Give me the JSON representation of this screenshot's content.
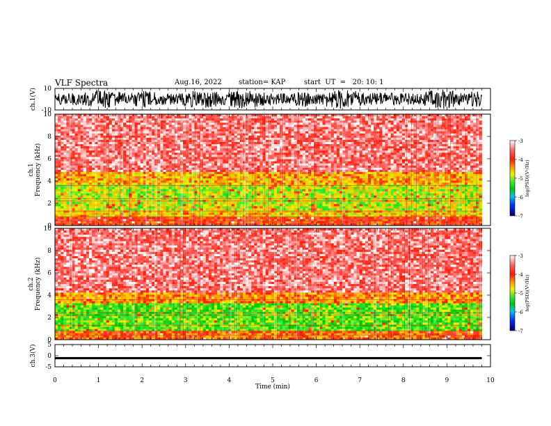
{
  "header": {
    "title": "VLF Spectra",
    "date": "Aug.16, 2022",
    "station": "station= KAP",
    "start": "start  UT  =   20: 10: 1"
  },
  "chart_data": [
    {
      "type": "line",
      "id": "ch1-waveform",
      "ylabel": "ch.1(V)",
      "ylim": [
        -10,
        10
      ],
      "yticks": [
        "10",
        "-10"
      ],
      "xlim": [
        0,
        10
      ],
      "data_extent_min": 9.8,
      "description_series": "high-amplitude noise waveform oscillating near full scale"
    },
    {
      "type": "heatmap",
      "id": "ch1-spectrogram",
      "ylabel": "ch.1",
      "ylabel2": "Frequency  (kHz)",
      "ylim": [
        0,
        10
      ],
      "yticks": [
        "0",
        "2",
        "4",
        "6",
        "8",
        "10"
      ],
      "bands": [
        {
          "from_khz": 0.0,
          "to_khz": 0.8,
          "level": -4.0
        },
        {
          "from_khz": 0.8,
          "to_khz": 1.3,
          "level": -4.6
        },
        {
          "from_khz": 1.3,
          "to_khz": 3.6,
          "level": -4.9
        },
        {
          "from_khz": 3.6,
          "to_khz": 4.8,
          "level": -4.5
        },
        {
          "from_khz": 4.8,
          "to_khz": 10.0,
          "level": -3.5
        }
      ],
      "colorbar": {
        "label": "log(PSD)(V²/Hz)",
        "ticks": [
          "-3",
          "-4",
          "-5",
          "-6",
          "-7"
        ],
        "range": [
          -7,
          -3
        ]
      }
    },
    {
      "type": "heatmap",
      "id": "ch2-spectrogram",
      "ylabel": "ch.2",
      "ylabel2": "Frequency  (kHz)",
      "ylim": [
        0,
        10
      ],
      "yticks": [
        "0",
        "2",
        "4",
        "6",
        "8",
        "10"
      ],
      "bands": [
        {
          "from_khz": 0.0,
          "to_khz": 0.7,
          "level": -4.2
        },
        {
          "from_khz": 0.7,
          "to_khz": 3.2,
          "level": -5.2
        },
        {
          "from_khz": 3.2,
          "to_khz": 4.3,
          "level": -4.4
        },
        {
          "from_khz": 4.3,
          "to_khz": 10.0,
          "level": -3.5
        }
      ],
      "colorbar": {
        "label": "log(PSD)(V²/Hz)",
        "ticks": [
          "-3",
          "-4",
          "-5",
          "-6",
          "-7"
        ],
        "range": [
          -7,
          -3
        ]
      }
    },
    {
      "type": "line",
      "id": "ch3-waveform",
      "ylabel": "ch.3(V)",
      "ylim": [
        -5,
        5
      ],
      "yticks": [
        "5",
        "0",
        "-5"
      ],
      "xlabel": "Time  (min)",
      "xlim": [
        0,
        10
      ],
      "xticks": [
        "0",
        "1",
        "2",
        "3",
        "4",
        "5",
        "6",
        "7",
        "8",
        "9",
        "10"
      ],
      "data_extent_min": 9.8,
      "description_series": "narrow dense band around -1 V"
    }
  ]
}
